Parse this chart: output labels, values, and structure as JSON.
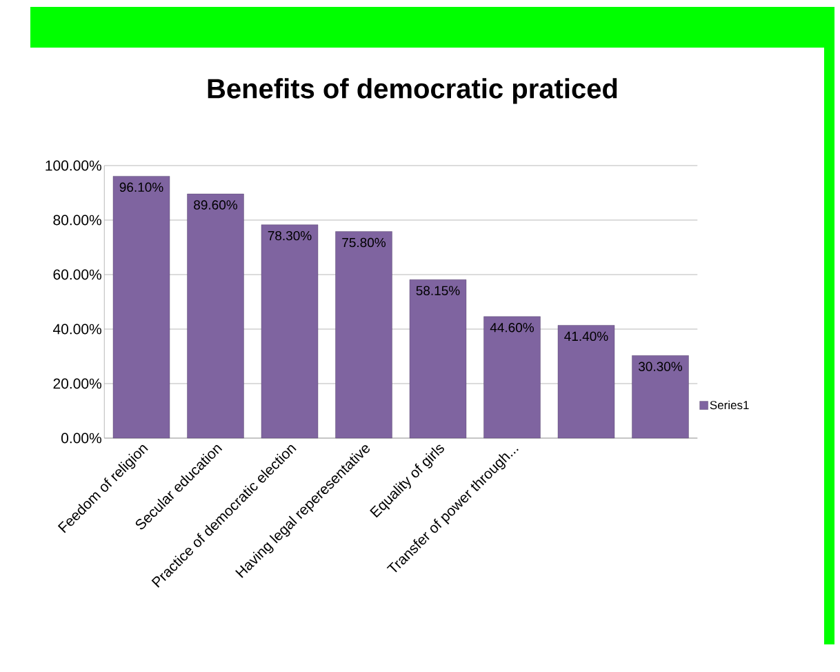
{
  "chart_data": {
    "type": "bar",
    "title": "Benefits of democratic praticed",
    "categories": [
      "Feedom of religion",
      "Secular education",
      "Practice of democratic election",
      "Having legal reperesentative",
      "Equality of girls",
      "Transfer of power through...",
      null,
      null
    ],
    "series": [
      {
        "name": "Series1",
        "color": "#7f64a0",
        "values": [
          96.1,
          89.6,
          78.3,
          75.8,
          58.15,
          44.6,
          41.4,
          30.3
        ],
        "value_labels": [
          "96.10%",
          "89.60%",
          "78.30%",
          "75.80%",
          "58.15%",
          "44.60%",
          "41.40%",
          "30.30%"
        ]
      }
    ],
    "ylim": [
      0,
      100
    ],
    "yticks": [
      {
        "value": 0,
        "label": "0.00%"
      },
      {
        "value": 20,
        "label": "20.00%"
      },
      {
        "value": 40,
        "label": "40.00%"
      },
      {
        "value": 60,
        "label": "60.00%"
      },
      {
        "value": 80,
        "label": "80.00%"
      },
      {
        "value": 100,
        "label": "100.00%"
      }
    ],
    "grid": "y",
    "legend": "right"
  }
}
